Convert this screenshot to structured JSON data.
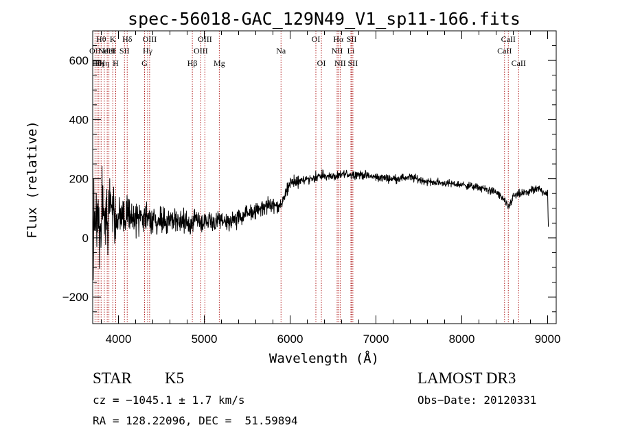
{
  "chart_data": {
    "type": "line",
    "title": "spec-56018-GAC_129N49_V1_sp11-166.fits",
    "xlabel": "Wavelength (Å)",
    "ylabel": "Flux (relative)",
    "xlim": [
      3700,
      9100
    ],
    "ylim": [
      -290,
      700
    ],
    "x_ticks": [
      {
        "value": 4000,
        "label": "4000"
      },
      {
        "value": 5000,
        "label": "5000"
      },
      {
        "value": 6000,
        "label": "6000"
      },
      {
        "value": 7000,
        "label": "7000"
      },
      {
        "value": 8000,
        "label": "8000"
      },
      {
        "value": 9000,
        "label": "9000"
      }
    ],
    "y_ticks": [
      {
        "value": -200,
        "label": "−200"
      },
      {
        "value": 0,
        "label": "0"
      },
      {
        "value": 200,
        "label": "200"
      },
      {
        "value": 400,
        "label": "400"
      },
      {
        "value": 600,
        "label": "600"
      }
    ],
    "series": [
      {
        "name": "flux",
        "color": "#000000",
        "noise_seed": 56018,
        "continuum": [
          [
            3700,
            60
          ],
          [
            3800,
            80
          ],
          [
            3900,
            70
          ],
          [
            4000,
            75
          ],
          [
            4200,
            70
          ],
          [
            4500,
            60
          ],
          [
            4800,
            55
          ],
          [
            5000,
            55
          ],
          [
            5200,
            50
          ],
          [
            5400,
            65
          ],
          [
            5600,
            95
          ],
          [
            5800,
            115
          ],
          [
            5880,
            100
          ],
          [
            5950,
            150
          ],
          [
            6000,
            185
          ],
          [
            6200,
            200
          ],
          [
            6400,
            210
          ],
          [
            6560,
            205
          ],
          [
            6600,
            215
          ],
          [
            6800,
            215
          ],
          [
            7000,
            205
          ],
          [
            7200,
            200
          ],
          [
            7400,
            205
          ],
          [
            7600,
            190
          ],
          [
            7800,
            185
          ],
          [
            8000,
            180
          ],
          [
            8200,
            170
          ],
          [
            8400,
            155
          ],
          [
            8500,
            125
          ],
          [
            8540,
            100
          ],
          [
            8600,
            140
          ],
          [
            8700,
            150
          ],
          [
            8900,
            165
          ],
          [
            9000,
            150
          ],
          [
            9010,
            5
          ]
        ],
        "noise_amplitude": [
          [
            3700,
            280
          ],
          [
            3850,
            220
          ],
          [
            3900,
            160
          ],
          [
            4000,
            110
          ],
          [
            4200,
            90
          ],
          [
            4500,
            65
          ],
          [
            5000,
            50
          ],
          [
            5500,
            45
          ],
          [
            6000,
            30
          ],
          [
            6500,
            22
          ],
          [
            8000,
            18
          ],
          [
            9010,
            22
          ]
        ]
      }
    ],
    "lines": [
      {
        "wavelength": 3727,
        "label": "OII",
        "row": 2
      },
      {
        "wavelength": 3750,
        "label": "Hθ",
        "row": 3
      },
      {
        "wavelength": 3771,
        "label": "Hη",
        "row": 3
      },
      {
        "wavelength": 3798,
        "label": "Hθ",
        "row": 1
      },
      {
        "wavelength": 3835,
        "label": "Hη",
        "row": 3
      },
      {
        "wavelength": 3869,
        "label": "NeIII",
        "row": 2
      },
      {
        "wavelength": 3889,
        "label": "HeI",
        "row": 2
      },
      {
        "wavelength": 3934,
        "label": "K",
        "row": 1
      },
      {
        "wavelength": 3968,
        "label": "H",
        "row": 3
      },
      {
        "wavelength": 4070,
        "label": "SII",
        "row": 2
      },
      {
        "wavelength": 4102,
        "label": "Hδ",
        "row": 1
      },
      {
        "wavelength": 4304,
        "label": "G",
        "row": 3
      },
      {
        "wavelength": 4340,
        "label": "Hγ",
        "row": 2
      },
      {
        "wavelength": 4363,
        "label": "OIII",
        "row": 1
      },
      {
        "wavelength": 4861,
        "label": "Hβ",
        "row": 3
      },
      {
        "wavelength": 4959,
        "label": "OIII",
        "row": 2
      },
      {
        "wavelength": 5007,
        "label": "OIII",
        "row": 1
      },
      {
        "wavelength": 5175,
        "label": "Mg",
        "row": 3
      },
      {
        "wavelength": 5894,
        "label": "Na",
        "row": 2
      },
      {
        "wavelength": 6300,
        "label": "OI",
        "row": 1
      },
      {
        "wavelength": 6364,
        "label": "OI",
        "row": 3
      },
      {
        "wavelength": 6548,
        "label": "NII",
        "row": 2
      },
      {
        "wavelength": 6563,
        "label": "Hα",
        "row": 1
      },
      {
        "wavelength": 6583,
        "label": "NII",
        "row": 3
      },
      {
        "wavelength": 6708,
        "label": "Li",
        "row": 2
      },
      {
        "wavelength": 6716,
        "label": "SII",
        "row": 1
      },
      {
        "wavelength": 6731,
        "label": "SII",
        "row": 3
      },
      {
        "wavelength": 8498,
        "label": "CaII",
        "row": 2
      },
      {
        "wavelength": 8542,
        "label": "CaII",
        "row": 1
      },
      {
        "wavelength": 8662,
        "label": "CaII",
        "row": 3
      }
    ],
    "line_color": "#b22222"
  },
  "info": {
    "class_label": "STAR",
    "subclass": "K5",
    "survey": "LAMOST DR3",
    "cz": "cz = −1045.1 ± 1.7 km/s",
    "obs_date": "Obs−Date: 20120331",
    "coords": "RA = 128.22096, DEC =  51.59894"
  }
}
